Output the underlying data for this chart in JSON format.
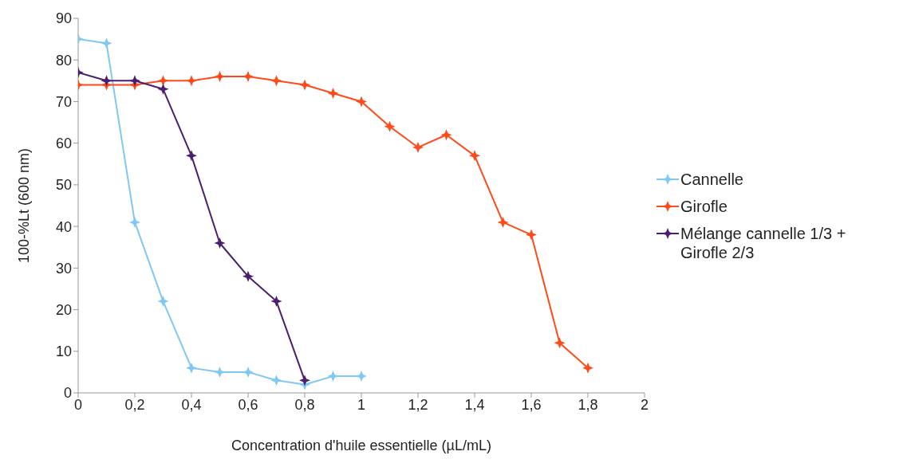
{
  "chart_data": {
    "type": "line",
    "xlabel": "Concentration d'huile essentielle (µL/mL)",
    "ylabel": "100-%Lt (600 nm)",
    "x": [
      0,
      0.1,
      0.2,
      0.3,
      0.4,
      0.5,
      0.6,
      0.7,
      0.8,
      0.9,
      1.0,
      1.1,
      1.2,
      1.3,
      1.4,
      1.5,
      1.6,
      1.7,
      1.8
    ],
    "series": [
      {
        "name": "Cannelle",
        "color": "#80c8f4",
        "x": [
          0,
          0.1,
          0.2,
          0.3,
          0.4,
          0.5,
          0.6,
          0.7,
          0.8,
          0.9,
          1.0
        ],
        "values": [
          85,
          84,
          41,
          22,
          6,
          5,
          5,
          3,
          2,
          4,
          4
        ]
      },
      {
        "name": "Girofle",
        "color": "#ff4a1a",
        "values": [
          74,
          74,
          74,
          75,
          75,
          76,
          76,
          75,
          74,
          72,
          70,
          64,
          59,
          62,
          57,
          41,
          38,
          12,
          6
        ]
      },
      {
        "name": "Mélange cannelle 1/3 + Girofle 2/3",
        "color": "#4b1f6f",
        "x": [
          0,
          0.1,
          0.2,
          0.3,
          0.4,
          0.5,
          0.6,
          0.7,
          0.8
        ],
        "values": [
          77,
          75,
          75,
          73,
          57,
          36,
          28,
          22,
          3
        ]
      }
    ],
    "xlim": [
      0,
      2
    ],
    "xticks": [
      0,
      {
        "value": 0.2,
        "label": "0,2"
      },
      {
        "value": 0.4,
        "label": "0,4"
      },
      {
        "value": 0.6,
        "label": "0,6"
      },
      {
        "value": 0.8,
        "label": "0,8"
      },
      1,
      {
        "value": 1.2,
        "label": "1,2"
      },
      {
        "value": 1.4,
        "label": "1,4"
      },
      {
        "value": 1.6,
        "label": "1,6"
      },
      {
        "value": 1.8,
        "label": "1,8"
      },
      2
    ],
    "ylim": [
      0,
      90
    ],
    "yticks": [
      0,
      10,
      20,
      30,
      40,
      50,
      60,
      70,
      80,
      90
    ],
    "grid": false,
    "legend": "right",
    "marker": "star",
    "line_style": "solid"
  }
}
